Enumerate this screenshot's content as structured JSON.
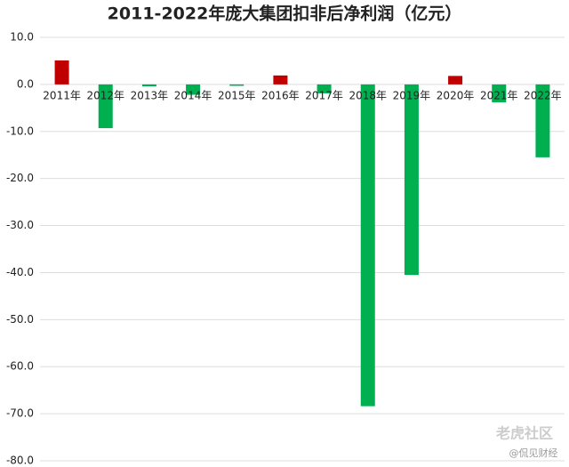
{
  "chart_data": {
    "type": "bar",
    "title": "2011-2022年庞大集团扣非后净利润（亿元）",
    "categories": [
      "2011年",
      "2012年",
      "2013年",
      "2014年",
      "2015年",
      "2016年",
      "2017年",
      "2018年",
      "2019年",
      "2020年",
      "2021年",
      "2022年"
    ],
    "values": [
      5.1,
      -9.3,
      -0.4,
      -2.2,
      -0.3,
      1.9,
      -1.9,
      -68.4,
      -40.5,
      1.8,
      -3.8,
      -15.5
    ],
    "positive_color": "#c00000",
    "negative_color": "#00b050",
    "ylim": [
      -80,
      10
    ],
    "yticks": [
      {
        "value": 10,
        "label": "10.0"
      },
      {
        "value": 0,
        "label": "0.0"
      },
      {
        "value": -10,
        "label": "-10.0"
      },
      {
        "value": -20,
        "label": "-20.0"
      },
      {
        "value": -30,
        "label": "-30.0"
      },
      {
        "value": -40,
        "label": "-40.0"
      },
      {
        "value": -50,
        "label": "-50.0"
      },
      {
        "value": -60,
        "label": "-60.0"
      },
      {
        "value": -70,
        "label": "-70.0"
      },
      {
        "value": -80,
        "label": "-80.0"
      }
    ],
    "grid": true,
    "watermark": [
      "老虎社区",
      "@侃见财经"
    ]
  }
}
